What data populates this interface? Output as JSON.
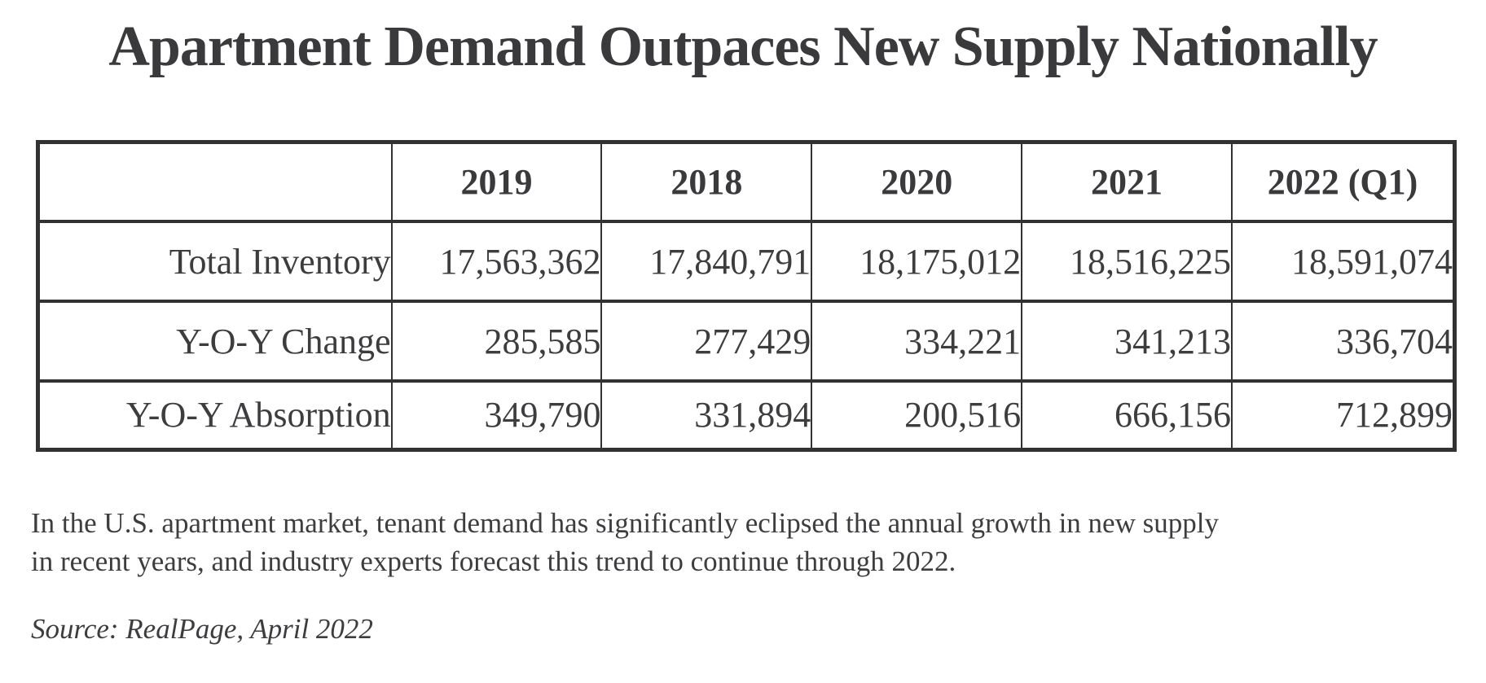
{
  "title": "Apartment Demand Outpaces New Supply Nationally",
  "table": {
    "columns": [
      "",
      "2019",
      "2018",
      "2020",
      "2021",
      "2022 (Q1)"
    ],
    "rows": [
      {
        "label": "Total Inventory",
        "values": [
          "17,563,362",
          "17,840,791",
          "18,175,012",
          "18,516,225",
          "18,591,074"
        ]
      },
      {
        "label": "Y-O-Y Change",
        "values": [
          "285,585",
          "277,429",
          "334,221",
          "341,213",
          "336,704"
        ]
      },
      {
        "label": "Y-O-Y Absorption",
        "values": [
          "349,790",
          "331,894",
          "200,516",
          "666,156",
          "712,899"
        ]
      }
    ]
  },
  "paragraph": {
    "line1": "In the U.S. apartment market, tenant demand has significantly eclipsed the annual growth in new supply",
    "line2": "in recent years, and industry experts forecast this trend to continue through 2022."
  },
  "source": "Source: RealPage, April 2022",
  "colors": {
    "text": "#3d3d40",
    "border": "#323235",
    "background": "#ffffff"
  },
  "chart_data": {
    "type": "table",
    "title": "Apartment Demand Outpaces New Supply Nationally",
    "columns": [
      "2019",
      "2018",
      "2020",
      "2021",
      "2022 (Q1)"
    ],
    "rows": [
      {
        "label": "Total Inventory",
        "values": [
          17563362,
          17840791,
          18175012,
          18516225,
          18591074
        ]
      },
      {
        "label": "Y-O-Y Change",
        "values": [
          285585,
          277429,
          334221,
          341213,
          336704
        ]
      },
      {
        "label": "Y-O-Y Absorption",
        "values": [
          349790,
          331894,
          200516,
          666156,
          712899
        ]
      }
    ],
    "source": "Source: RealPage, April 2022"
  }
}
